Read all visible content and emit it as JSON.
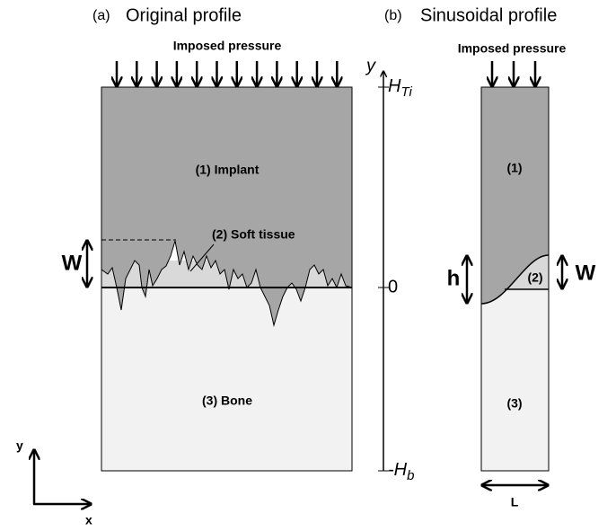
{
  "panel_a": {
    "label": "(a)",
    "title": "Original profile",
    "pressure": "Imposed pressure",
    "implant": "(1) Implant",
    "soft_tissue": "(2) Soft tissue",
    "bone": "(3) Bone",
    "amplitude": "W"
  },
  "axis": {
    "name": "y",
    "top": {
      "base": "H",
      "sub": "Ti"
    },
    "zero": "0",
    "bottom": {
      "base": "-H",
      "sub": "b"
    }
  },
  "panel_b": {
    "label": "(b)",
    "title": "Sinusoidal profile",
    "pressure": "Imposed pressure",
    "implant": "(1)",
    "soft_tissue": "(2)",
    "bone": "(3)",
    "height": "h",
    "amplitude": "W",
    "width": "L"
  },
  "coordinate": {
    "y": "y",
    "x": "x"
  }
}
